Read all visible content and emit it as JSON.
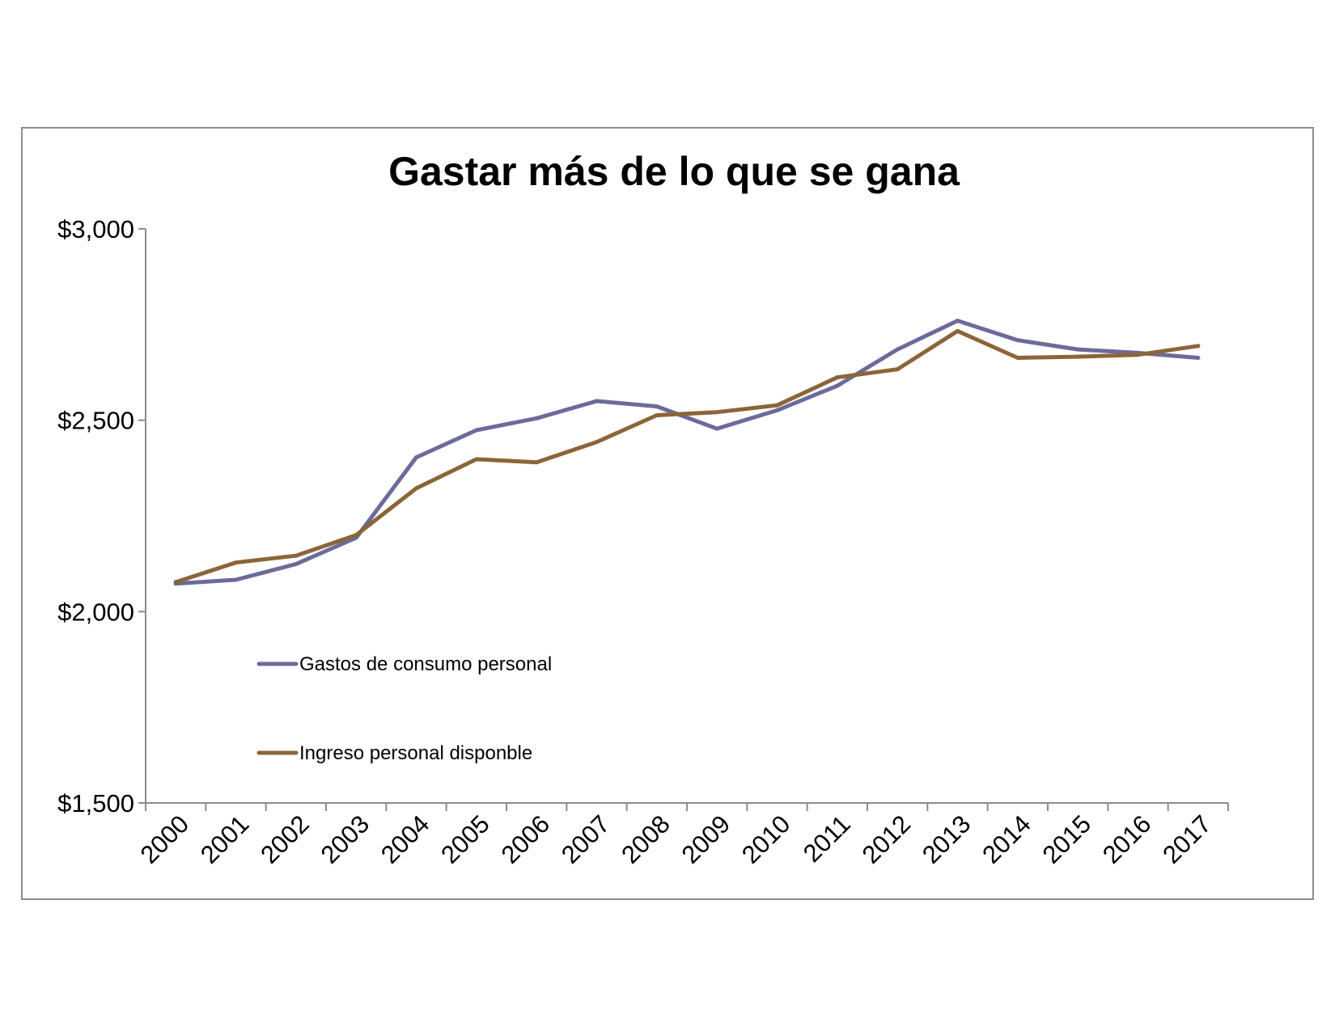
{
  "chart_data": {
    "type": "line",
    "title": "Gastar más de lo que se gana",
    "xlabel": "",
    "ylabel": "",
    "categories": [
      "2000",
      "2001",
      "2002",
      "2003",
      "2004",
      "2005",
      "2006",
      "2007",
      "2008",
      "2009",
      "2010",
      "2011",
      "2012",
      "2013",
      "2014",
      "2015",
      "2016",
      "2017"
    ],
    "ylim": [
      1500,
      3000
    ],
    "yticks": [
      1500,
      2000,
      2500,
      3000
    ],
    "ytick_labels": [
      "$1,500",
      "$2,000",
      "$2,500",
      "$3,000"
    ],
    "grid": false,
    "legend_position": "left",
    "series": [
      {
        "name": "Gastos de consumo personal",
        "color": "#6b6b9b",
        "values": [
          2073,
          2083,
          2124,
          2193,
          2403,
          2474,
          2505,
          2550,
          2536,
          2478,
          2526,
          2590,
          2685,
          2760,
          2709,
          2685,
          2676,
          2663
        ]
      },
      {
        "name": "Ingreso personal disponble",
        "color": "#8b6538",
        "values": [
          2077,
          2128,
          2146,
          2200,
          2322,
          2398,
          2390,
          2443,
          2513,
          2521,
          2539,
          2612,
          2633,
          2733,
          2663,
          2666,
          2671,
          2694
        ]
      }
    ]
  }
}
